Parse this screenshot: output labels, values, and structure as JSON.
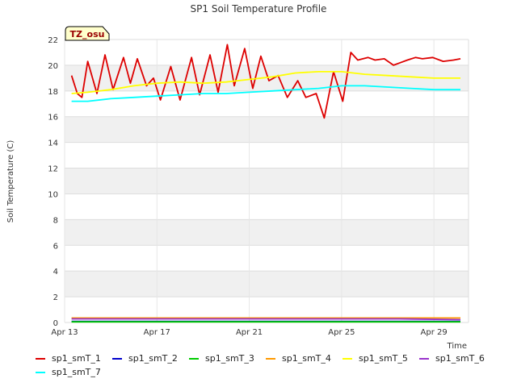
{
  "chart_data": {
    "type": "line",
    "title": "SP1 Soil Temperature Profile",
    "xlabel": "Time",
    "ylabel": "Soil Temperature (C)",
    "annotation": "TZ_osu",
    "xlim": [
      0,
      17.5
    ],
    "ylim": [
      0,
      22
    ],
    "x_ticks": [
      {
        "value": 0,
        "label": "Apr 13"
      },
      {
        "value": 4,
        "label": "Apr 17"
      },
      {
        "value": 8,
        "label": "Apr 21"
      },
      {
        "value": 12,
        "label": "Apr 25"
      },
      {
        "value": 16,
        "label": "Apr 29"
      }
    ],
    "y_ticks": [
      0,
      2,
      4,
      6,
      8,
      10,
      12,
      14,
      16,
      18,
      20,
      22
    ],
    "grid": true,
    "legend_position": "bottom",
    "series": [
      {
        "name": "sp1_smT_1",
        "color": "#dd0000",
        "x": [
          0.3,
          0.55,
          0.75,
          1.0,
          1.4,
          1.75,
          2.1,
          2.55,
          2.85,
          3.15,
          3.55,
          3.85,
          4.15,
          4.6,
          5.0,
          5.5,
          5.85,
          6.3,
          6.65,
          7.05,
          7.35,
          7.8,
          8.15,
          8.5,
          8.85,
          9.25,
          9.65,
          10.1,
          10.45,
          10.9,
          11.25,
          11.65,
          12.05,
          12.4,
          12.7,
          13.15,
          13.45,
          13.85,
          14.25,
          14.55,
          14.85,
          15.2,
          15.5,
          15.95,
          16.4,
          16.85,
          17.15
        ],
        "y": [
          19.2,
          17.8,
          17.5,
          20.3,
          17.8,
          20.8,
          18.1,
          20.6,
          18.6,
          20.5,
          18.4,
          19.0,
          17.3,
          19.9,
          17.3,
          20.6,
          17.7,
          20.8,
          17.9,
          21.6,
          18.4,
          21.3,
          18.2,
          20.7,
          18.8,
          19.2,
          17.5,
          18.8,
          17.5,
          17.8,
          15.9,
          19.5,
          17.2,
          21.0,
          20.4,
          20.6,
          20.4,
          20.5,
          20.0,
          20.2,
          20.4,
          20.6,
          20.5,
          20.6,
          20.3,
          20.4,
          20.5
        ]
      },
      {
        "name": "sp1_smT_2",
        "color": "#0000cc",
        "x": [
          0.3,
          17.15
        ],
        "y": [
          0.08,
          0.08
        ]
      },
      {
        "name": "sp1_smT_3",
        "color": "#00cc00",
        "x": [
          0.3,
          17.15
        ],
        "y": [
          0.05,
          0.05
        ]
      },
      {
        "name": "sp1_smT_4",
        "color": "#ff9900",
        "x": [
          0.3,
          17.15
        ],
        "y": [
          0.35,
          0.35
        ]
      },
      {
        "name": "sp1_smT_5",
        "color": "#ffff00",
        "x": [
          0.3,
          1.0,
          2.0,
          3.0,
          4.0,
          5.0,
          6.0,
          7.0,
          8.0,
          9.0,
          10.0,
          11.0,
          12.0,
          13.0,
          14.0,
          15.0,
          16.0,
          17.15
        ],
        "y": [
          17.8,
          17.9,
          18.1,
          18.4,
          18.6,
          18.7,
          18.6,
          18.7,
          18.9,
          19.1,
          19.4,
          19.5,
          19.5,
          19.3,
          19.2,
          19.1,
          19.0,
          19.0
        ]
      },
      {
        "name": "sp1_smT_6",
        "color": "#9933cc",
        "x": [
          0.3,
          14.5,
          17.15
        ],
        "y": [
          0.28,
          0.28,
          0.22
        ]
      },
      {
        "name": "sp1_smT_7",
        "color": "#00ffff",
        "x": [
          0.3,
          1.0,
          2.0,
          3.0,
          4.0,
          5.0,
          6.0,
          7.0,
          8.0,
          9.0,
          10.0,
          11.0,
          12.0,
          13.0,
          14.0,
          15.0,
          16.0,
          17.15
        ],
        "y": [
          17.2,
          17.2,
          17.4,
          17.5,
          17.6,
          17.7,
          17.8,
          17.8,
          17.9,
          18.0,
          18.1,
          18.2,
          18.4,
          18.4,
          18.3,
          18.2,
          18.1,
          18.1
        ]
      }
    ]
  }
}
